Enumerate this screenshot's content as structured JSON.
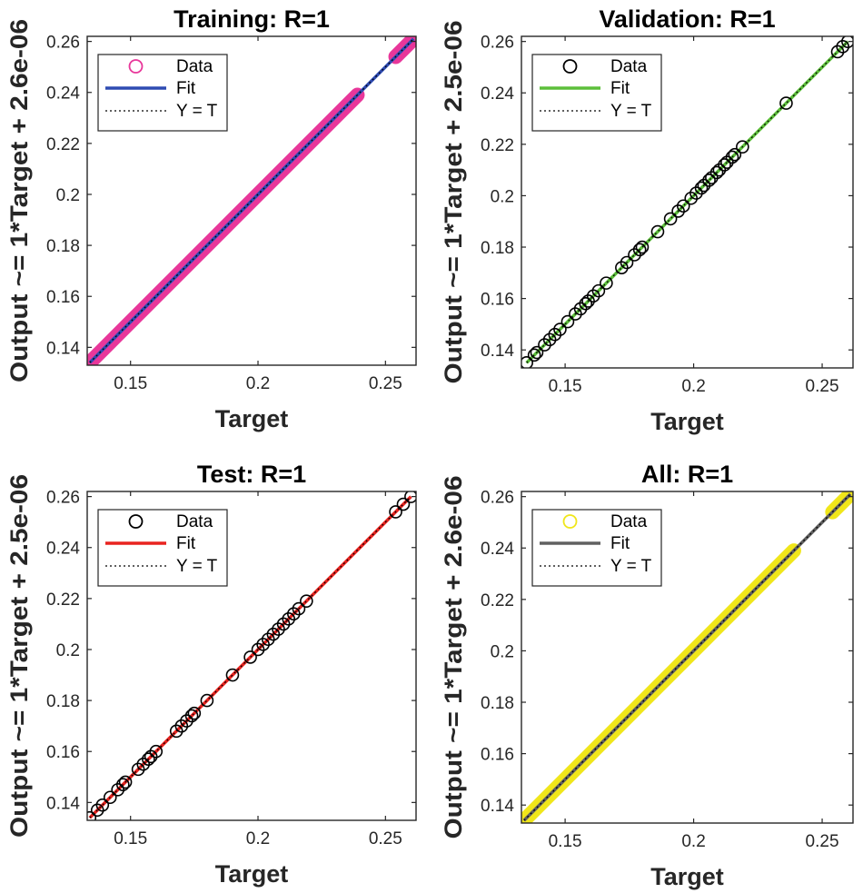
{
  "chart_data": [
    {
      "type": "scatter",
      "title": "Training: R=1",
      "xlabel": "Target",
      "ylabel": "Output ~= 1*Target + 2.6e-06",
      "xlim": [
        0.133,
        0.262
      ],
      "ylim": [
        0.133,
        0.262
      ],
      "xticks": [
        "0.15",
        "0.2",
        "0.25"
      ],
      "yticks": [
        "0.14",
        "0.16",
        "0.18",
        "0.2",
        "0.22",
        "0.24",
        "0.26"
      ],
      "grid": false,
      "legend_position": "top-left",
      "legend": [
        "Data",
        "Fit",
        "Y = T"
      ],
      "colors": {
        "data": "#e8379a",
        "fit": "#2e4bb2",
        "ref": "#000000"
      },
      "series": [
        {
          "kind": "dense",
          "ranges": [
            [
              0.134,
              0.239
            ],
            [
              0.254,
              0.261
            ]
          ]
        },
        {
          "kind": "fit",
          "x": [
            0.134,
            0.261
          ],
          "y": [
            0.134,
            0.261
          ]
        },
        {
          "kind": "ref",
          "x": [
            0.134,
            0.261
          ],
          "y": [
            0.134,
            0.261
          ]
        }
      ]
    },
    {
      "type": "scatter",
      "title": "Validation: R=1",
      "xlabel": "Target",
      "ylabel": "Output ~= 1*Target + 2.5e-06",
      "xlim": [
        0.133,
        0.262
      ],
      "ylim": [
        0.133,
        0.262
      ],
      "xticks": [
        "0.15",
        "0.2",
        "0.25"
      ],
      "yticks": [
        "0.14",
        "0.16",
        "0.18",
        "0.2",
        "0.22",
        "0.24",
        "0.26"
      ],
      "grid": false,
      "legend_position": "top-left",
      "legend": [
        "Data",
        "Fit",
        "Y = T"
      ],
      "colors": {
        "data": "#000000",
        "fit": "#5cbf3a",
        "ref": "#000000"
      },
      "series": [
        {
          "kind": "points",
          "x": [
            0.135,
            0.138,
            0.139,
            0.142,
            0.144,
            0.146,
            0.148,
            0.151,
            0.154,
            0.156,
            0.158,
            0.159,
            0.161,
            0.163,
            0.166,
            0.172,
            0.174,
            0.177,
            0.179,
            0.18,
            0.186,
            0.191,
            0.194,
            0.196,
            0.199,
            0.201,
            0.203,
            0.204,
            0.206,
            0.207,
            0.209,
            0.21,
            0.212,
            0.213,
            0.215,
            0.216,
            0.219,
            0.236,
            0.256,
            0.258,
            0.26
          ]
        },
        {
          "kind": "fit",
          "x": [
            0.135,
            0.26
          ],
          "y": [
            0.135,
            0.26
          ]
        },
        {
          "kind": "ref",
          "x": [
            0.135,
            0.26
          ],
          "y": [
            0.135,
            0.26
          ]
        }
      ]
    },
    {
      "type": "scatter",
      "title": "Test: R=1",
      "xlabel": "Target",
      "ylabel": "Output ~= 1*Target + 2.5e-06",
      "xlim": [
        0.133,
        0.262
      ],
      "ylim": [
        0.133,
        0.262
      ],
      "xticks": [
        "0.15",
        "0.2",
        "0.25"
      ],
      "yticks": [
        "0.14",
        "0.16",
        "0.18",
        "0.2",
        "0.22",
        "0.24",
        "0.26"
      ],
      "grid": false,
      "legend_position": "top-left",
      "legend": [
        "Data",
        "Fit",
        "Y = T"
      ],
      "colors": {
        "data": "#000000",
        "fit": "#e8231f",
        "ref": "#000000"
      },
      "series": [
        {
          "kind": "points",
          "x": [
            0.134,
            0.137,
            0.139,
            0.142,
            0.145,
            0.147,
            0.148,
            0.153,
            0.155,
            0.157,
            0.158,
            0.16,
            0.168,
            0.17,
            0.172,
            0.174,
            0.175,
            0.18,
            0.19,
            0.197,
            0.2,
            0.202,
            0.204,
            0.206,
            0.208,
            0.21,
            0.212,
            0.214,
            0.216,
            0.219,
            0.254,
            0.257,
            0.26
          ]
        },
        {
          "kind": "fit",
          "x": [
            0.134,
            0.26
          ],
          "y": [
            0.134,
            0.26
          ]
        },
        {
          "kind": "ref",
          "x": [
            0.134,
            0.26
          ],
          "y": [
            0.134,
            0.26
          ]
        }
      ]
    },
    {
      "type": "scatter",
      "title": "All: R=1",
      "xlabel": "Target",
      "ylabel": "Output ~= 1*Target + 2.6e-06",
      "xlim": [
        0.133,
        0.262
      ],
      "ylim": [
        0.133,
        0.262
      ],
      "xticks": [
        "0.15",
        "0.2",
        "0.25"
      ],
      "yticks": [
        "0.14",
        "0.16",
        "0.18",
        "0.2",
        "0.22",
        "0.24",
        "0.26"
      ],
      "grid": false,
      "legend_position": "top-left",
      "legend": [
        "Data",
        "Fit",
        "Y = T"
      ],
      "colors": {
        "data": "#f0e61a",
        "fit": "#606060",
        "ref": "#000000"
      },
      "series": [
        {
          "kind": "dense",
          "ranges": [
            [
              0.134,
              0.239
            ],
            [
              0.254,
              0.261
            ]
          ]
        },
        {
          "kind": "fit",
          "x": [
            0.134,
            0.261
          ],
          "y": [
            0.134,
            0.261
          ]
        },
        {
          "kind": "ref",
          "x": [
            0.134,
            0.261
          ],
          "y": [
            0.134,
            0.261
          ]
        }
      ]
    }
  ]
}
